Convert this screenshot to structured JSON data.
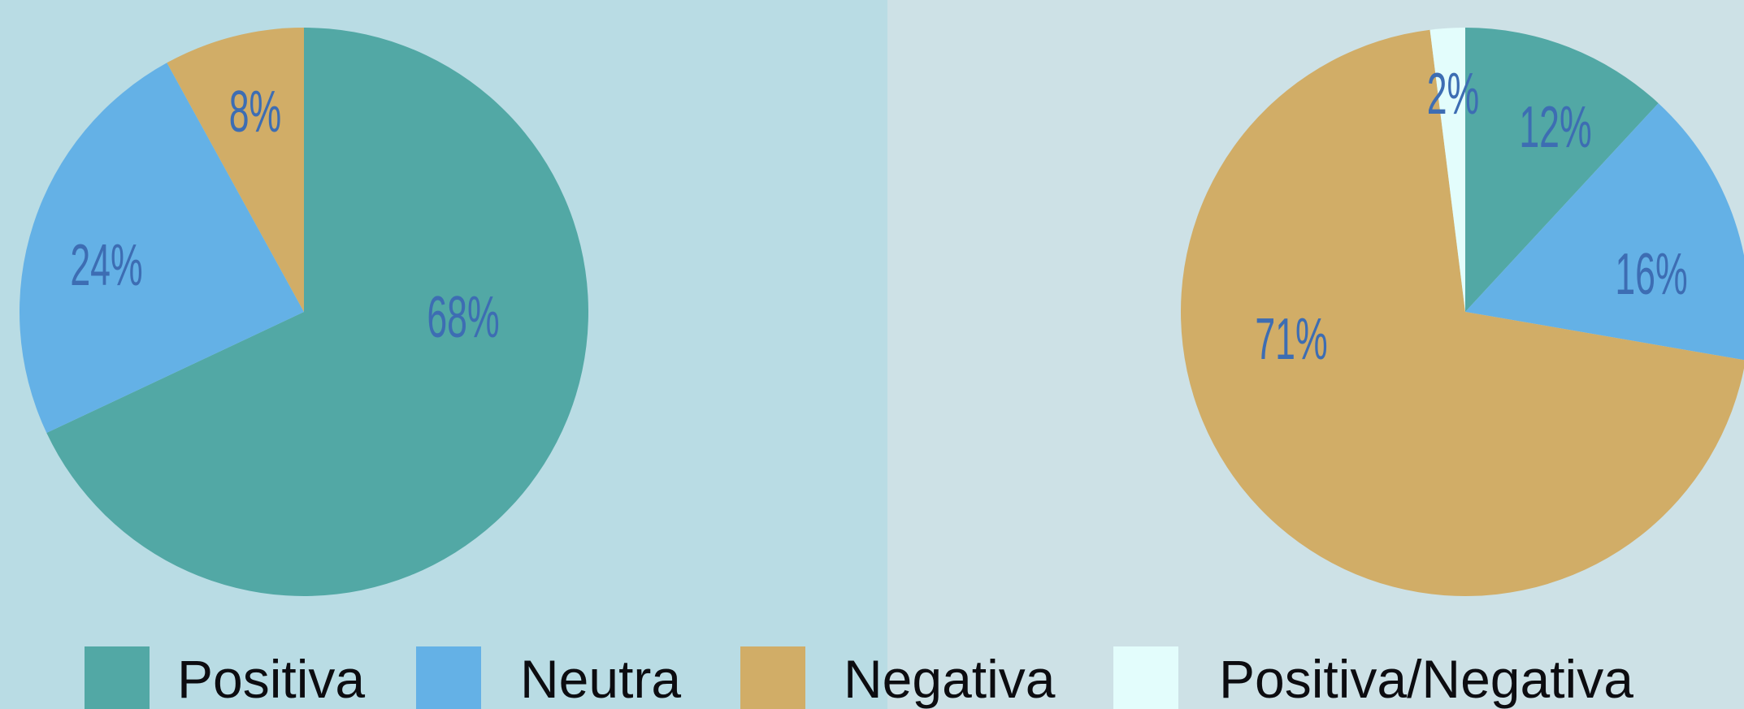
{
  "colors": {
    "left_background": "#b9dce4",
    "right_background": "#cde1e6",
    "label_text": "#3d6db3",
    "legend_text": "#0c0c10"
  },
  "chart_data": [
    {
      "type": "pie",
      "start_angle_deg": 0,
      "direction": "clockwise",
      "slices": [
        {
          "category": "Positiva",
          "value": 68,
          "label": "68%",
          "color": "#52a8a5"
        },
        {
          "category": "Neutra",
          "value": 24,
          "label": "24%",
          "color": "#64b1e6"
        },
        {
          "category": "Negativa",
          "value": 8,
          "label": "8%",
          "color": "#d1ad67"
        }
      ]
    },
    {
      "type": "pie",
      "start_angle_deg": 0,
      "direction": "clockwise",
      "slices": [
        {
          "category": "Positiva",
          "value": 12,
          "label": "12%",
          "color": "#52a8a5"
        },
        {
          "category": "Neutra",
          "value": 16,
          "label": "16%",
          "color": "#64b1e6"
        },
        {
          "category": "Negativa",
          "value": 71,
          "label": "71%",
          "color": "#d1ad67"
        },
        {
          "category": "Positiva/Negativa",
          "value": 2,
          "label": "2%",
          "color": "#e3fdfc"
        }
      ]
    }
  ],
  "legend": {
    "items": [
      {
        "label": "Positiva",
        "color": "#52a8a5"
      },
      {
        "label": "Neutra",
        "color": "#64b1e6"
      },
      {
        "label": "Negativa",
        "color": "#d1ad67"
      },
      {
        "label": "Positiva/Negativa",
        "color": "#e3fdfc"
      }
    ]
  }
}
